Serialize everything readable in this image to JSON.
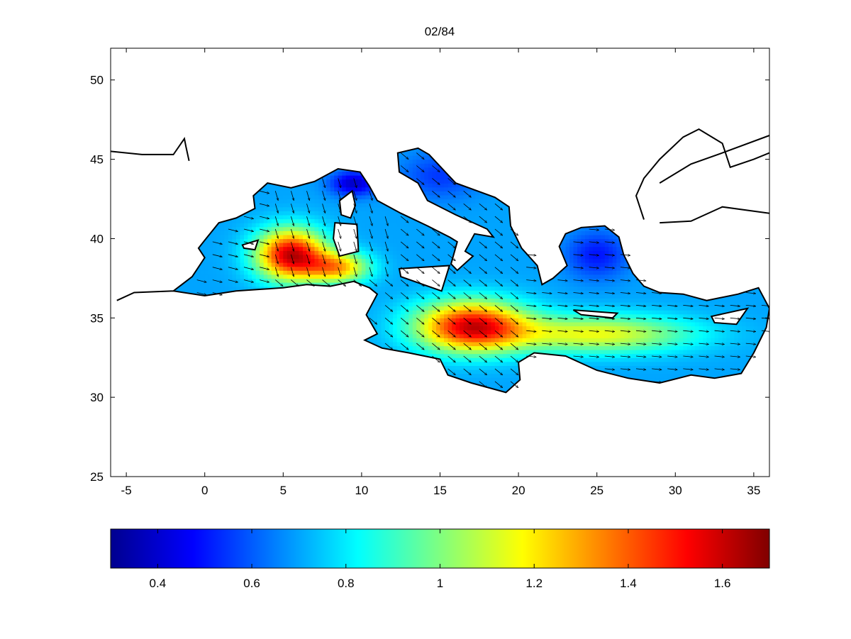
{
  "title": "02/84",
  "map": {
    "xlim": [
      -6,
      36
    ],
    "ylim": [
      25,
      52
    ],
    "xticks": [
      -5,
      0,
      5,
      10,
      15,
      20,
      25,
      30,
      35
    ],
    "yticks": [
      25,
      30,
      35,
      40,
      45,
      50
    ],
    "field_colormap": "jet",
    "vectors": "black arrows"
  },
  "colorbar": {
    "range": [
      0.3,
      1.7
    ],
    "ticks": [
      0.4,
      0.6,
      0.8,
      1,
      1.2,
      1.4,
      1.6
    ],
    "tick_labels": [
      "0.4",
      "0.6",
      "0.8",
      "1",
      "1.2",
      "1.4",
      "1.6"
    ],
    "colormap": "jet"
  }
}
